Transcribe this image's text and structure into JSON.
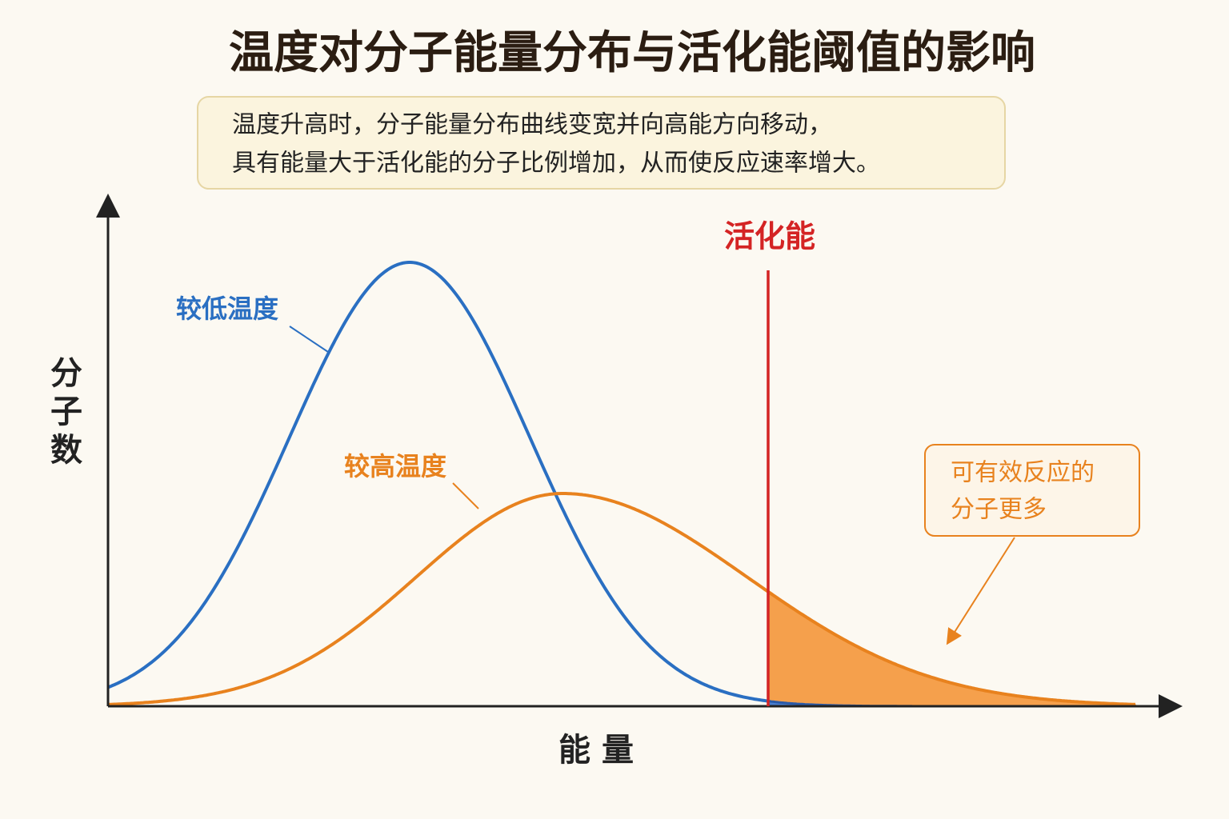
{
  "title": "温度对分子能量分布与活化能阈值的影响",
  "description": [
    "温度升高时，分子能量分布曲线变宽并向高能方向移动，",
    "具有能量大于活化能的分子比例增加，从而使反应速率增大。"
  ],
  "axes": {
    "y_label": "分子数",
    "x_label": "能 量"
  },
  "curves": [
    {
      "label": "较低温度"
    },
    {
      "label": "较高温度"
    }
  ],
  "threshold": {
    "label": "活化能"
  },
  "callout": [
    "可有效反应的",
    "分子更多"
  ]
}
